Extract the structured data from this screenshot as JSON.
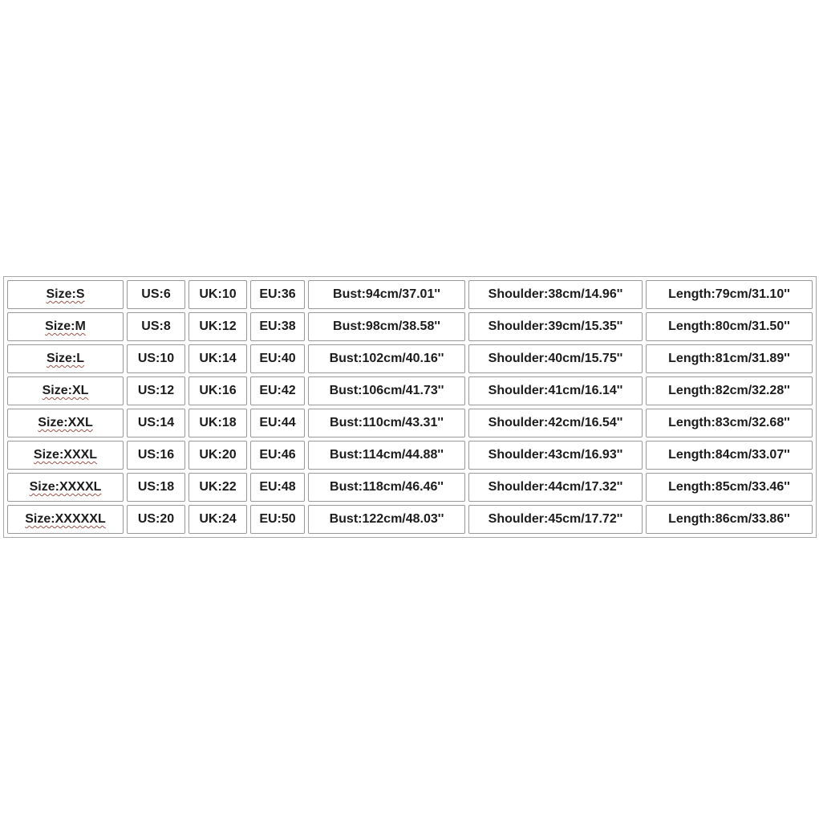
{
  "chart_data": {
    "type": "table",
    "title": "Garment size chart",
    "columns": [
      "Size",
      "US",
      "UK",
      "EU",
      "Bust",
      "Shoulder",
      "Length"
    ],
    "rows": [
      [
        "Size:S",
        "US:6",
        "UK:10",
        "EU:36",
        "Bust:94cm/37.01''",
        "Shoulder:38cm/14.96''",
        "Length:79cm/31.10''"
      ],
      [
        "Size:M",
        "US:8",
        "UK:12",
        "EU:38",
        "Bust:98cm/38.58''",
        "Shoulder:39cm/15.35''",
        "Length:80cm/31.50''"
      ],
      [
        "Size:L",
        "US:10",
        "UK:14",
        "EU:40",
        "Bust:102cm/40.16''",
        "Shoulder:40cm/15.75''",
        "Length:81cm/31.89''"
      ],
      [
        "Size:XL",
        "US:12",
        "UK:16",
        "EU:42",
        "Bust:106cm/41.73''",
        "Shoulder:41cm/16.14''",
        "Length:82cm/32.28''"
      ],
      [
        "Size:XXL",
        "US:14",
        "UK:18",
        "EU:44",
        "Bust:110cm/43.31''",
        "Shoulder:42cm/16.54''",
        "Length:83cm/32.68''"
      ],
      [
        "Size:XXXL",
        "US:16",
        "UK:20",
        "EU:46",
        "Bust:114cm/44.88''",
        "Shoulder:43cm/16.93''",
        "Length:84cm/33.07''"
      ],
      [
        "Size:XXXXL",
        "US:18",
        "UK:22",
        "EU:48",
        "Bust:118cm/46.46''",
        "Shoulder:44cm/17.32''",
        "Length:85cm/33.46''"
      ],
      [
        "Size:XXXXXL",
        "US:20",
        "UK:24",
        "EU:50",
        "Bust:122cm/48.03''",
        "Shoulder:45cm/17.72''",
        "Length:86cm/33.86''"
      ]
    ]
  },
  "colors": {
    "background": "#ffffff",
    "cell_border": "#999999",
    "text": "#1c1c1c",
    "squiggle_underline": "#a0524c"
  }
}
